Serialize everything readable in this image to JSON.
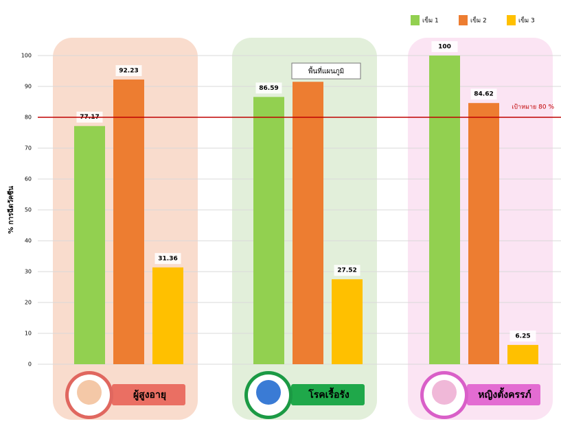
{
  "chart_data": {
    "type": "bar",
    "y_label": "% การฉีดวัคซีน",
    "categories": [
      "ผู้สูงอายุ",
      "โรคเรื้อรัง",
      "หญิงตั้งครรภ์"
    ],
    "series": [
      {
        "name": "เข็ม 1",
        "color": "#92d050",
        "values": [
          77.17,
          86.59,
          100
        ]
      },
      {
        "name": "เข็ม 2",
        "color": "#ed7d31",
        "values": [
          92.23,
          91.5,
          84.62
        ],
        "value_labels": [
          "92.23",
          null,
          "84.62"
        ]
      },
      {
        "name": "เข็ม 3",
        "color": "#ffc000",
        "values": [
          31.36,
          27.52,
          6.25
        ]
      }
    ],
    "ylim": [
      0,
      100
    ],
    "yticks": [
      0,
      10,
      20,
      30,
      40,
      50,
      60,
      70,
      80,
      90,
      100
    ],
    "grid": true,
    "target": {
      "value": 80,
      "label": "เป้าหมาย 80 %",
      "color": "#c00000"
    },
    "tooltip": "พื้นที่แผนภูมิ",
    "legend": "top-right"
  }
}
